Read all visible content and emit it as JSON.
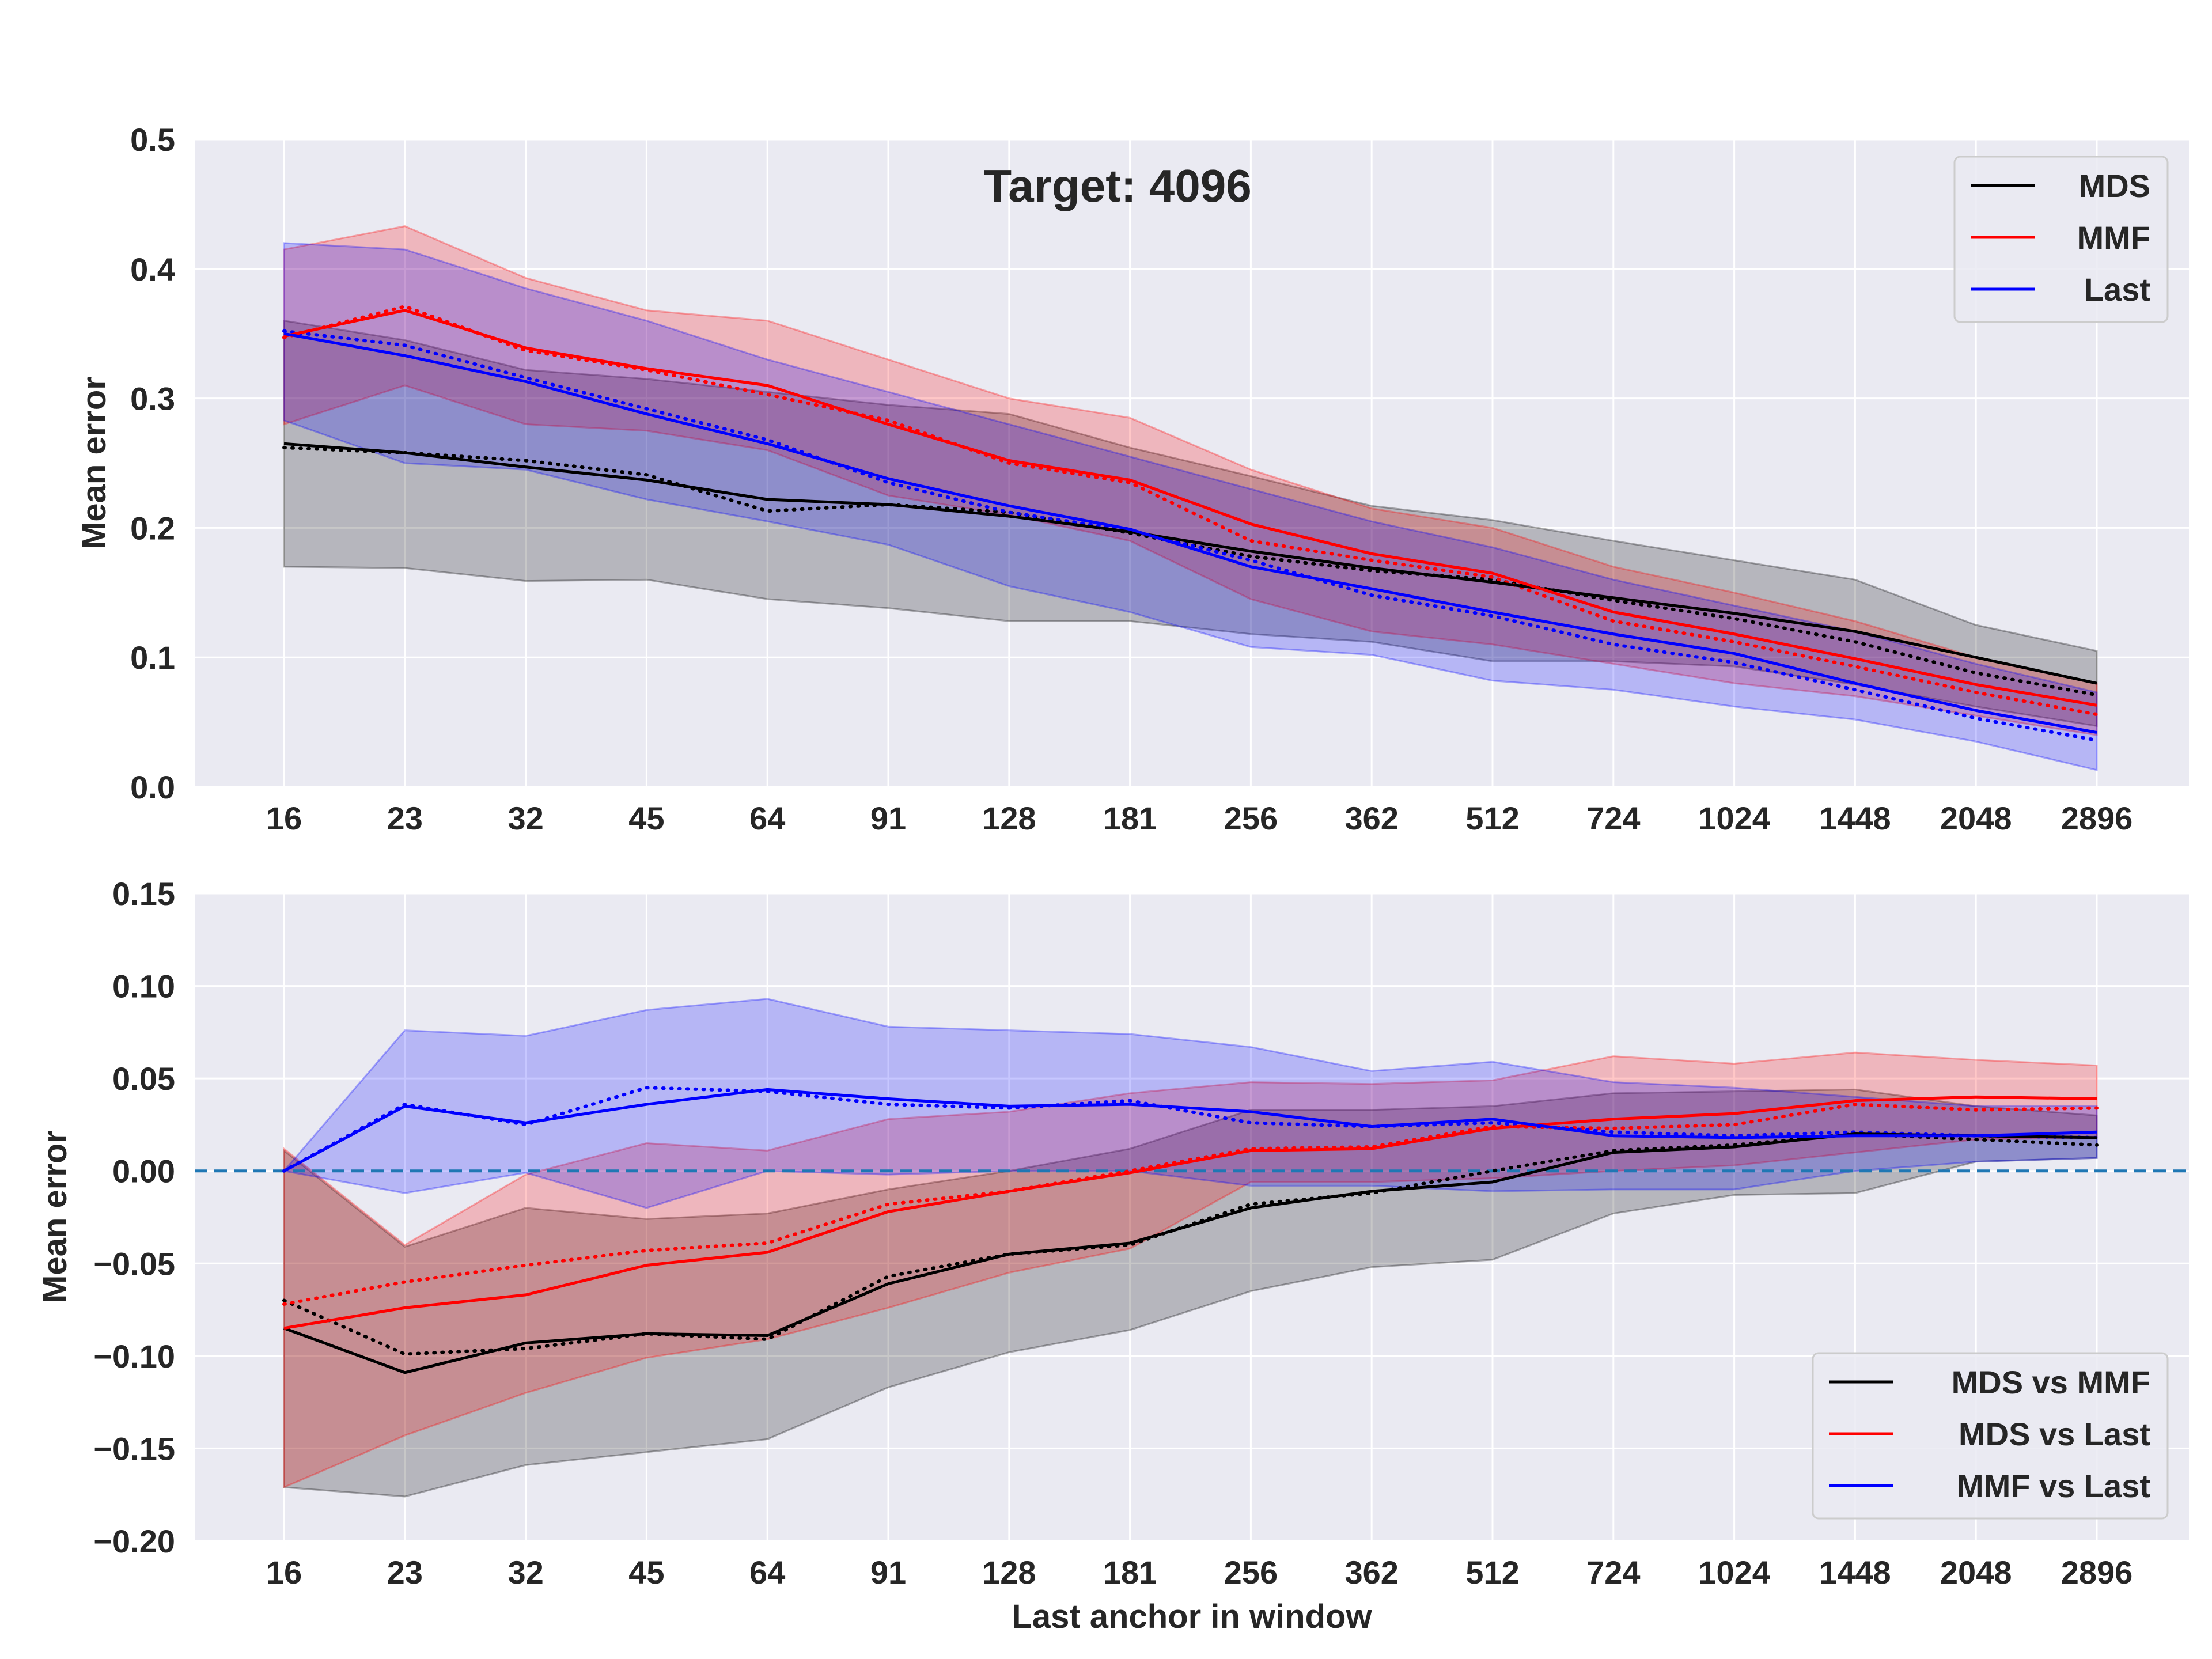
{
  "chart_data": [
    {
      "type": "line",
      "title": "Target: 4096",
      "xlabel": "",
      "ylabel": "Mean error",
      "x_tick_labels": [
        "16",
        "23",
        "32",
        "45",
        "64",
        "91",
        "128",
        "181",
        "256",
        "362",
        "512",
        "724",
        "1024",
        "1448",
        "2048",
        "2896"
      ],
      "y_ticks": [
        "0.0",
        "0.1",
        "0.2",
        "0.3",
        "0.4",
        "0.5"
      ],
      "ylim": [
        0,
        0.5
      ],
      "grid": true,
      "legend_position": "top-right",
      "series": [
        {
          "name": "MDS",
          "color": "#000000",
          "values": [
            0.265,
            0.258,
            0.247,
            0.237,
            0.222,
            0.218,
            0.209,
            0.197,
            0.182,
            0.169,
            0.158,
            0.146,
            0.134,
            0.12,
            0.1,
            0.08
          ],
          "dotted": [
            0.262,
            0.258,
            0.252,
            0.241,
            0.213,
            0.218,
            0.212,
            0.196,
            0.178,
            0.167,
            0.16,
            0.144,
            0.13,
            0.112,
            0.088,
            0.071
          ],
          "lower": [
            0.17,
            0.169,
            0.159,
            0.16,
            0.145,
            0.138,
            0.128,
            0.128,
            0.118,
            0.112,
            0.097,
            0.097,
            0.093,
            0.079,
            0.062,
            0.047
          ],
          "upper": [
            0.36,
            0.345,
            0.322,
            0.315,
            0.305,
            0.295,
            0.288,
            0.262,
            0.24,
            0.217,
            0.206,
            0.19,
            0.175,
            0.16,
            0.125,
            0.105
          ]
        },
        {
          "name": "MMF",
          "color": "#ff0000",
          "values": [
            0.348,
            0.368,
            0.339,
            0.323,
            0.31,
            0.28,
            0.252,
            0.237,
            0.203,
            0.18,
            0.165,
            0.135,
            0.118,
            0.099,
            0.079,
            0.063
          ],
          "dotted": [
            0.347,
            0.371,
            0.337,
            0.322,
            0.303,
            0.283,
            0.25,
            0.235,
            0.19,
            0.175,
            0.162,
            0.128,
            0.112,
            0.093,
            0.073,
            0.056
          ],
          "lower": [
            0.28,
            0.31,
            0.28,
            0.275,
            0.26,
            0.225,
            0.21,
            0.19,
            0.145,
            0.12,
            0.11,
            0.095,
            0.08,
            0.07,
            0.055,
            0.04
          ],
          "upper": [
            0.415,
            0.433,
            0.393,
            0.368,
            0.36,
            0.33,
            0.3,
            0.285,
            0.245,
            0.215,
            0.2,
            0.17,
            0.15,
            0.128,
            0.1,
            0.08
          ]
        },
        {
          "name": "Last",
          "color": "#0000ff",
          "values": [
            0.35,
            0.333,
            0.313,
            0.288,
            0.265,
            0.238,
            0.217,
            0.199,
            0.17,
            0.153,
            0.135,
            0.118,
            0.103,
            0.08,
            0.059,
            0.042
          ],
          "dotted": [
            0.352,
            0.341,
            0.316,
            0.292,
            0.268,
            0.235,
            0.212,
            0.198,
            0.175,
            0.148,
            0.132,
            0.11,
            0.096,
            0.075,
            0.053,
            0.036
          ],
          "lower": [
            0.283,
            0.25,
            0.245,
            0.222,
            0.205,
            0.187,
            0.155,
            0.135,
            0.108,
            0.102,
            0.082,
            0.075,
            0.062,
            0.052,
            0.035,
            0.013
          ],
          "upper": [
            0.42,
            0.415,
            0.385,
            0.36,
            0.33,
            0.305,
            0.28,
            0.255,
            0.23,
            0.205,
            0.185,
            0.16,
            0.14,
            0.12,
            0.095,
            0.073
          ]
        }
      ]
    },
    {
      "type": "line",
      "title": "",
      "xlabel": "Last anchor in window",
      "ylabel": "Mean error",
      "x_tick_labels": [
        "16",
        "23",
        "32",
        "45",
        "64",
        "91",
        "128",
        "181",
        "256",
        "362",
        "512",
        "724",
        "1024",
        "1448",
        "2048",
        "2896"
      ],
      "y_ticks": [
        "0.15",
        "0.10",
        "0.05",
        "0.00",
        "−0.05",
        "−0.10",
        "−0.15",
        "−0.20"
      ],
      "ylim": [
        -0.2,
        0.15
      ],
      "grid": true,
      "legend_position": "lower-right",
      "reference_line": {
        "y": 0,
        "style": "dashed",
        "color": "#1f77b4"
      },
      "series": [
        {
          "name": "MDS vs MMF",
          "color": "#000000",
          "values": [
            -0.085,
            -0.109,
            -0.093,
            -0.088,
            -0.089,
            -0.061,
            -0.045,
            -0.039,
            -0.02,
            -0.011,
            -0.006,
            0.01,
            0.013,
            0.02,
            0.019,
            0.018
          ],
          "dotted": [
            -0.07,
            -0.099,
            -0.096,
            -0.088,
            -0.091,
            -0.057,
            -0.045,
            -0.04,
            -0.018,
            -0.012,
            0.0,
            0.011,
            0.014,
            0.02,
            0.017,
            0.014
          ],
          "lower": [
            -0.171,
            -0.176,
            -0.159,
            -0.152,
            -0.145,
            -0.117,
            -0.098,
            -0.086,
            -0.065,
            -0.052,
            -0.048,
            -0.023,
            -0.013,
            -0.012,
            0.005,
            0.007
          ],
          "upper": [
            0.011,
            -0.041,
            -0.02,
            -0.026,
            -0.023,
            -0.01,
            0.0,
            0.012,
            0.033,
            0.033,
            0.035,
            0.042,
            0.043,
            0.044,
            0.035,
            0.03
          ]
        },
        {
          "name": "MDS vs Last",
          "color": "#ff0000",
          "values": [
            -0.085,
            -0.074,
            -0.067,
            -0.051,
            -0.044,
            -0.022,
            -0.011,
            -0.001,
            0.011,
            0.012,
            0.023,
            0.028,
            0.031,
            0.038,
            0.04,
            0.039
          ],
          "dotted": [
            -0.072,
            -0.06,
            -0.051,
            -0.043,
            -0.039,
            -0.018,
            -0.011,
            0.0,
            0.012,
            0.013,
            0.024,
            0.023,
            0.025,
            0.036,
            0.033,
            0.034
          ],
          "lower": [
            -0.171,
            -0.143,
            -0.12,
            -0.101,
            -0.091,
            -0.074,
            -0.055,
            -0.042,
            -0.006,
            -0.006,
            -0.004,
            0.0,
            0.003,
            0.01,
            0.017,
            0.018
          ],
          "upper": [
            0.012,
            -0.04,
            -0.002,
            0.015,
            0.011,
            0.028,
            0.032,
            0.042,
            0.048,
            0.047,
            0.049,
            0.062,
            0.058,
            0.064,
            0.06,
            0.057
          ]
        },
        {
          "name": "MMF vs Last",
          "color": "#0000ff",
          "values": [
            0.0,
            0.035,
            0.026,
            0.036,
            0.044,
            0.039,
            0.035,
            0.036,
            0.032,
            0.024,
            0.028,
            0.019,
            0.018,
            0.019,
            0.019,
            0.021
          ],
          "dotted": [
            0.0,
            0.036,
            0.025,
            0.045,
            0.043,
            0.036,
            0.034,
            0.038,
            0.026,
            0.024,
            0.026,
            0.021,
            0.019,
            0.021,
            0.019,
            0.018
          ],
          "lower": [
            0.0,
            -0.012,
            -0.001,
            -0.02,
            0.0,
            -0.002,
            0.0,
            0.0,
            -0.008,
            -0.008,
            -0.011,
            -0.01,
            -0.01,
            0.0,
            0.005,
            0.007
          ],
          "upper": [
            0.0,
            0.076,
            0.073,
            0.087,
            0.093,
            0.078,
            0.076,
            0.074,
            0.067,
            0.054,
            0.059,
            0.048,
            0.045,
            0.04,
            0.035,
            0.035
          ]
        }
      ]
    }
  ]
}
